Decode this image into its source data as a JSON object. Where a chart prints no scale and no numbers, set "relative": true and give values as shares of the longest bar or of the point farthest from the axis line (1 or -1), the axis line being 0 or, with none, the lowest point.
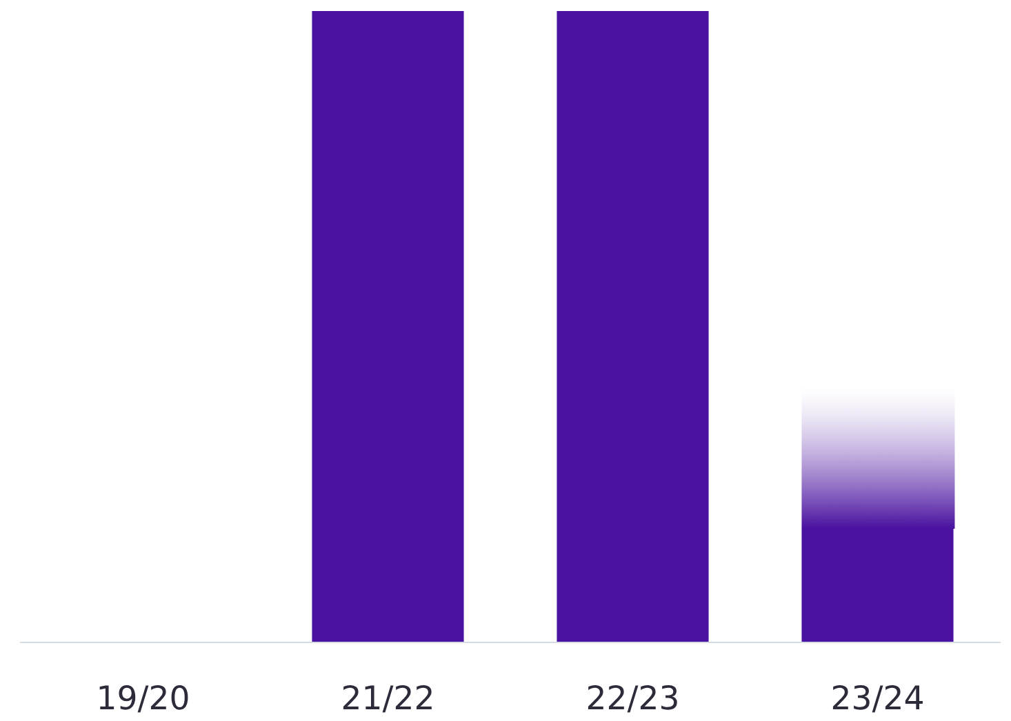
{
  "chart_data": {
    "type": "bar",
    "relative": true,
    "categories": [
      "19/20",
      "21/22",
      "22/23",
      "23/24"
    ],
    "values": [
      0,
      1,
      1,
      0.18
    ],
    "color": "#4a12a0",
    "grid": false,
    "legend": false
  }
}
